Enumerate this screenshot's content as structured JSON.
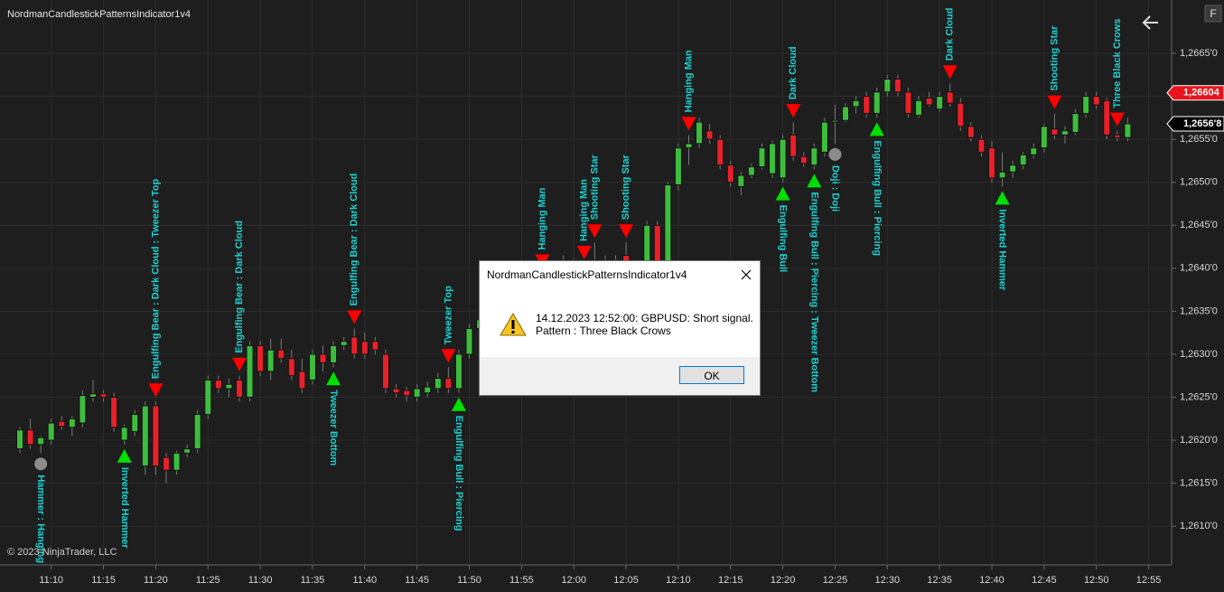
{
  "chart_data": {
    "type": "candlestick",
    "title": "NordmanCandlestickPatternsIndicator1v4",
    "copyright": "© 2023 NinjaTrader, LLC",
    "categories": [
      null,
      null,
      null,
      "11:10",
      null,
      null,
      null,
      null,
      "11:15",
      null,
      null,
      null,
      null,
      "11:20",
      null,
      null,
      null,
      null,
      "11:25",
      null,
      null,
      null,
      null,
      "11:30",
      null,
      null,
      null,
      null,
      "11:35",
      null,
      null,
      null,
      null,
      "11:40",
      null,
      null,
      null,
      null,
      "11:45",
      null,
      null,
      null,
      null,
      "11:50",
      null,
      null,
      null,
      null,
      "11:55",
      null,
      null,
      null,
      null,
      "12:00",
      null,
      null,
      null,
      null,
      "12:05",
      null,
      null,
      null,
      null,
      "12:10",
      null,
      null,
      null,
      null,
      "12:15",
      null,
      null,
      null,
      null,
      "12:20",
      null,
      null,
      null,
      null,
      "12:25",
      null,
      null,
      null,
      null,
      "12:30",
      null,
      null,
      null,
      null,
      "12:35",
      null,
      null,
      null,
      null,
      "12:40",
      null,
      null,
      null,
      null,
      "12:45",
      null,
      null,
      null,
      null,
      "12:50",
      null,
      null,
      null,
      null,
      "12:55"
    ],
    "open": [
      1.2619,
      1.26212,
      1.26195,
      1.262,
      1.26222,
      1.26215,
      1.2622,
      1.2625,
      1.26254,
      1.2625,
      1.262,
      1.2621,
      1.2617,
      1.2624,
      1.2618,
      1.26165,
      1.26185,
      1.2619,
      1.2623,
      1.2627,
      1.2626,
      1.2627,
      1.2625,
      1.2631,
      1.2628,
      1.26305,
      1.26295,
      1.2628,
      1.2627,
      1.263,
      1.2629,
      1.2631,
      1.2632,
      1.26315,
      1.26315,
      1.263,
      1.2626,
      1.26258,
      1.2625,
      1.26255,
      1.2626,
      1.26272,
      1.2626,
      1.263,
      1.2633,
      1.2634,
      1.2636,
      1.2635,
      1.2637,
      1.2638,
      1.2639,
      1.26385,
      1.264,
      1.2641,
      1.26395,
      1.264,
      1.2641,
      1.264,
      1.26415,
      1.264,
      1.26385,
      1.2645,
      1.264,
      1.26497,
      1.2654,
      1.26545,
      1.2656,
      1.2655,
      1.2652,
      1.26495,
      1.26508,
      1.26518,
      1.2651,
      1.26505,
      1.26555,
      1.2653,
      1.2652,
      1.26535,
      1.2657,
      1.26572,
      1.26588,
      1.266,
      1.2658,
      1.26605,
      1.2662,
      1.26605,
      1.26578,
      1.26598,
      1.26585,
      1.26605,
      1.26592,
      1.26565,
      1.2655,
      1.2654,
      1.26505,
      1.26512,
      1.2652,
      1.26532,
      1.2654,
      1.26562,
      1.26555,
      1.26558,
      1.2658,
      1.266,
      1.26595,
      1.26555,
      1.26552,
      null,
      null
    ],
    "high": [
      1.26215,
      1.26225,
      1.26205,
      1.26225,
      1.26228,
      1.26228,
      1.26258,
      1.2627,
      1.26258,
      1.26255,
      1.26218,
      1.26235,
      1.26245,
      1.26245,
      1.26185,
      1.26188,
      1.26195,
      1.26235,
      1.26275,
      1.26275,
      1.26272,
      1.26275,
      1.26315,
      1.26315,
      1.26318,
      1.26318,
      1.26305,
      1.26295,
      1.26305,
      1.2631,
      1.26315,
      1.2632,
      1.2633,
      1.26325,
      1.2632,
      1.26305,
      1.26265,
      1.26262,
      1.26265,
      1.26268,
      1.26278,
      1.26285,
      1.26305,
      1.26335,
      1.26345,
      1.26365,
      1.26365,
      1.26375,
      1.26385,
      1.26395,
      1.26395,
      1.26405,
      1.26415,
      1.26412,
      1.26405,
      1.2643,
      1.26415,
      1.26415,
      1.2643,
      1.26405,
      1.26455,
      1.26455,
      1.265,
      1.26545,
      1.26555,
      1.26575,
      1.26568,
      1.26555,
      1.26525,
      1.26512,
      1.26522,
      1.26545,
      1.26548,
      1.26555,
      1.2657,
      1.26535,
      1.26545,
      1.26575,
      1.2659,
      1.26592,
      1.266,
      1.26605,
      1.2661,
      1.26625,
      1.26625,
      1.2661,
      1.266,
      1.26605,
      1.26605,
      1.26615,
      1.26598,
      1.2657,
      1.26555,
      1.26548,
      1.26535,
      1.26525,
      1.26535,
      1.26545,
      1.26568,
      1.2658,
      1.26565,
      1.26585,
      1.26605,
      1.26605,
      1.26598,
      1.2656,
      1.26575,
      null,
      null
    ],
    "low": [
      1.26185,
      1.2619,
      1.26185,
      1.26195,
      1.26212,
      1.26205,
      1.26215,
      1.26245,
      1.26245,
      1.2621,
      1.26195,
      1.26205,
      1.2616,
      1.2616,
      1.2615,
      1.2616,
      1.2618,
      1.26185,
      1.26225,
      1.26255,
      1.2625,
      1.26245,
      1.26245,
      1.26275,
      1.2627,
      1.2629,
      1.2627,
      1.26255,
      1.26265,
      1.2628,
      1.26285,
      1.26305,
      1.26295,
      1.26295,
      1.263,
      1.26255,
      1.2625,
      1.26245,
      1.26245,
      1.2625,
      1.26255,
      1.26255,
      1.26255,
      1.26295,
      1.26325,
      1.26335,
      1.26345,
      1.26345,
      1.26365,
      1.26375,
      1.26375,
      1.2638,
      1.26395,
      1.2639,
      1.26385,
      1.26395,
      1.26395,
      1.26395,
      1.26395,
      1.2638,
      1.2638,
      1.26395,
      1.26395,
      1.2649,
      1.2652,
      1.2654,
      1.26545,
      1.26515,
      1.26495,
      1.26485,
      1.26505,
      1.26515,
      1.26505,
      1.265,
      1.26525,
      1.26518,
      1.26515,
      1.2653,
      1.26545,
      1.2657,
      1.2658,
      1.26575,
      1.26575,
      1.266,
      1.266,
      1.26575,
      1.26575,
      1.26588,
      1.26582,
      1.26588,
      1.2656,
      1.26548,
      1.2653,
      1.265,
      1.26495,
      1.26505,
      1.26515,
      1.26528,
      1.26535,
      1.2655,
      1.26545,
      1.26555,
      1.26575,
      1.26585,
      1.2655,
      1.26548,
      1.26548,
      null,
      null
    ],
    "close": [
      1.26212,
      1.26195,
      1.26203,
      1.2622,
      1.26216,
      1.26225,
      1.26252,
      1.26254,
      1.2625,
      1.26215,
      1.26215,
      1.2623,
      1.2624,
      1.2617,
      1.26165,
      1.26185,
      1.2619,
      1.2623,
      1.2627,
      1.2626,
      1.26265,
      1.2625,
      1.2631,
      1.2628,
      1.26305,
      1.26295,
      1.26275,
      1.2626,
      1.263,
      1.2629,
      1.2631,
      1.26315,
      1.263,
      1.263,
      1.26305,
      1.2626,
      1.26255,
      1.26252,
      1.2626,
      1.26262,
      1.26272,
      1.2626,
      1.263,
      1.2633,
      1.2634,
      1.2636,
      1.2635,
      1.2637,
      1.2638,
      1.2639,
      1.26385,
      1.264,
      1.2641,
      1.26395,
      1.264,
      1.2641,
      1.264,
      1.2641,
      1.264,
      1.26385,
      1.2645,
      1.264,
      1.26497,
      1.2654,
      1.26545,
      1.2657,
      1.2655,
      1.2652,
      1.265,
      1.26508,
      1.26518,
      1.2654,
      1.26545,
      1.2655,
      1.2653,
      1.26522,
      1.2654,
      1.2657,
      1.26572,
      1.26588,
      1.26595,
      1.2658,
      1.26605,
      1.2662,
      1.26605,
      1.2658,
      1.26595,
      1.2659,
      1.266,
      1.26592,
      1.26565,
      1.26552,
      1.26535,
      1.26505,
      1.26512,
      1.2652,
      1.26532,
      1.2654,
      1.26565,
      1.26555,
      1.2656,
      1.2658,
      1.266,
      1.2659,
      1.26555,
      1.26552,
      1.26568,
      null,
      null
    ],
    "patterns": [
      null,
      null,
      {
        "label": "Hammer : Hanging Man",
        "signal": "dot"
      },
      null,
      null,
      null,
      null,
      null,
      null,
      null,
      {
        "label": "Inverted Hammer",
        "signal": "up"
      },
      null,
      null,
      {
        "label": "Engulfing Bear : Dark Cloud : Tweezer Top",
        "signal": "down"
      },
      null,
      null,
      null,
      null,
      null,
      null,
      null,
      {
        "label": "Engulfing Bear : Dark Cloud",
        "signal": "down"
      },
      null,
      null,
      null,
      null,
      null,
      null,
      null,
      null,
      {
        "label": "Tweezer Bottom",
        "signal": "up"
      },
      null,
      {
        "label": "Engulfing Bear : Dark Cloud",
        "signal": "down"
      },
      null,
      null,
      null,
      null,
      null,
      null,
      null,
      null,
      {
        "label": "Tweezer Top",
        "signal": "down"
      },
      {
        "label": "Engulfing Bull : Piercing",
        "signal": "up"
      },
      null,
      null,
      null,
      null,
      null,
      null,
      null,
      {
        "label": "Hanging Man",
        "signal": "down"
      },
      null,
      null,
      null,
      {
        "label": "Hanging Man",
        "signal": "down"
      },
      {
        "label": "Shooting Star",
        "signal": "down"
      },
      null,
      null,
      {
        "label": "Shooting Star",
        "signal": "down"
      },
      null,
      null,
      null,
      null,
      null,
      {
        "label": "Hanging Man",
        "signal": "down"
      },
      null,
      null,
      null,
      null,
      null,
      null,
      null,
      null,
      {
        "label": "Engulfing Bull",
        "signal": "up"
      },
      {
        "label": "Dark Cloud",
        "signal": "down"
      },
      null,
      {
        "label": "Engulfing Bull : Piercing : Tweezer Bottom",
        "signal": "up"
      },
      null,
      {
        "label": "Doji : Doji",
        "signal": "dot"
      },
      null,
      null,
      null,
      {
        "label": "Engulfing Bull : Piercing",
        "signal": "up"
      },
      null,
      null,
      null,
      null,
      null,
      null,
      {
        "label": "Dark Cloud",
        "signal": "down"
      },
      null,
      null,
      null,
      null,
      {
        "label": "Inverted Hammer",
        "signal": "up"
      },
      null,
      null,
      null,
      null,
      {
        "label": "Shooting Star",
        "signal": "down"
      },
      null,
      null,
      null,
      null,
      null,
      {
        "label": "Three Black Crows",
        "signal": "down"
      },
      null,
      null,
      null
    ],
    "up_color": "#3dbd3d",
    "down_color": "#e8202a",
    "up_signal_color": "#00e000",
    "down_signal_color": "#ff0000",
    "dot_color": "#8c8c8c",
    "label_color": "#1fd0d0",
    "ylim": [
      1.26055,
      1.26712
    ],
    "yticks": [
      {
        "value": 1.261,
        "label": "1,2610'0"
      },
      {
        "value": 1.2615,
        "label": "1,2615'0"
      },
      {
        "value": 1.262,
        "label": "1,2620'0"
      },
      {
        "value": 1.2625,
        "label": "1,2625'0"
      },
      {
        "value": 1.263,
        "label": "1,2630'0"
      },
      {
        "value": 1.2635,
        "label": "1,2635'0"
      },
      {
        "value": 1.264,
        "label": "1,2640'0"
      },
      {
        "value": 1.2645,
        "label": "1,2645'0"
      },
      {
        "value": 1.265,
        "label": "1,2650'0"
      },
      {
        "value": 1.2655,
        "label": "1,2655'0"
      },
      {
        "value": 1.266,
        "label": "1,2660'0"
      },
      {
        "value": 1.2665,
        "label": "1,2665'0"
      }
    ],
    "grid": true,
    "price_markers": [
      {
        "value": 1.26604,
        "label": "1,26604",
        "color": "#e8141c"
      },
      {
        "value": 1.26568,
        "label": "1,2656'8",
        "color": "#000000"
      }
    ]
  },
  "toolbar": {
    "button": "F"
  },
  "dialog": {
    "title": "NordmanCandlestickPatternsIndicator1v4",
    "message": [
      "14.12.2023 12:52:00: GBPUSD: Short signal.",
      "Pattern : Three Black Crows"
    ],
    "button": "OK"
  }
}
